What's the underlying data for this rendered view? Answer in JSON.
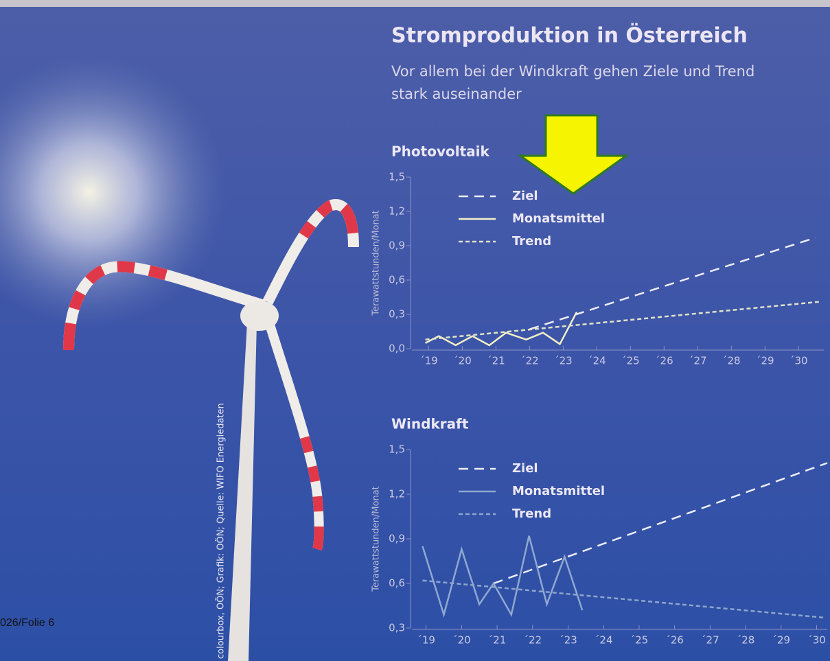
{
  "header": {
    "title": "Stromproduktion in Österreich",
    "subtitle": [
      "Vor allem bei der Windkraft gehen Ziele und Trend",
      "stark auseinander"
    ]
  },
  "credit": "colourbox, OÖN; Grafik: OÖN; Quelle: WIFO Energiedaten",
  "slide_label": "026/Folie 6",
  "chart_data": [
    {
      "type": "line",
      "title": "Photovoltaik",
      "ylabel": "Terawattstunden/Monat",
      "legend": "upper left",
      "xlim": [
        18.5,
        30.75
      ],
      "xticks": [
        {
          "value": 19,
          "label": "´19"
        },
        {
          "value": 20,
          "label": "´20"
        },
        {
          "value": 21,
          "label": "´21"
        },
        {
          "value": 22,
          "label": "´22"
        },
        {
          "value": 23,
          "label": "´23"
        },
        {
          "value": 24,
          "label": "´24"
        },
        {
          "value": 25,
          "label": "´25"
        },
        {
          "value": 26,
          "label": "´26"
        },
        {
          "value": 27,
          "label": "´27"
        },
        {
          "value": 28,
          "label": "´28"
        },
        {
          "value": 29,
          "label": "´29"
        },
        {
          "value": 30,
          "label": "´30"
        }
      ],
      "ylim": [
        0,
        1.5
      ],
      "yticks": [
        {
          "value": 0,
          "label": "0,0"
        },
        {
          "value": 0.3,
          "label": "0,3"
        },
        {
          "value": 0.6,
          "label": "0,6"
        },
        {
          "value": 0.9,
          "label": "0,9"
        },
        {
          "value": 1.2,
          "label": "1,2"
        },
        {
          "value": 1.5,
          "label": "1,5"
        }
      ],
      "series": [
        {
          "name": "Ziel",
          "color": "#eeeef6",
          "dash": "long",
          "x": [
            22,
            30.5
          ],
          "values": [
            0.17,
            0.97
          ]
        },
        {
          "name": "Monatsmittel",
          "color": "#f2efc6",
          "dash": "solid",
          "x": [
            18.9,
            19.3,
            19.8,
            20.3,
            20.8,
            21.3,
            21.9,
            22.4,
            22.9,
            23.4
          ],
          "values": [
            0.05,
            0.11,
            0.03,
            0.11,
            0.03,
            0.14,
            0.08,
            0.14,
            0.04,
            0.32
          ]
        },
        {
          "name": "Trend",
          "color": "#e2e4c8",
          "dash": "short",
          "x": [
            18.9,
            30.6
          ],
          "values": [
            0.08,
            0.41
          ]
        }
      ]
    },
    {
      "type": "line",
      "title": "Windkraft",
      "ylabel": "Terawattstunden/Monat",
      "legend": "upper left",
      "xlim": [
        18.6,
        30.3
      ],
      "xticks": [
        {
          "value": 19,
          "label": "´19"
        },
        {
          "value": 20,
          "label": "´20"
        },
        {
          "value": 21,
          "label": "´21"
        },
        {
          "value": 22,
          "label": "´22"
        },
        {
          "value": 23,
          "label": "´23"
        },
        {
          "value": 24,
          "label": "´24"
        },
        {
          "value": 25,
          "label": "´25"
        },
        {
          "value": 26,
          "label": "´26"
        },
        {
          "value": 27,
          "label": "´27"
        },
        {
          "value": 28,
          "label": "´28"
        },
        {
          "value": 29,
          "label": "´29"
        },
        {
          "value": 30,
          "label": "´30"
        }
      ],
      "ylim": [
        0.3,
        1.5
      ],
      "yticks": [
        {
          "value": 0.3,
          "label": "0,3"
        },
        {
          "value": 0.6,
          "label": "0,6"
        },
        {
          "value": 0.9,
          "label": "0,9"
        },
        {
          "value": 1.2,
          "label": "1,2"
        },
        {
          "value": 1.5,
          "label": "1,5"
        }
      ],
      "series": [
        {
          "name": "Ziel",
          "color": "#eeeef6",
          "dash": "long",
          "x": [
            20.9,
            30.3
          ],
          "values": [
            0.6,
            1.41
          ]
        },
        {
          "name": "Monatsmittel",
          "color": "#8fa8d0",
          "dash": "solid",
          "x": [
            18.9,
            19.5,
            20.0,
            20.5,
            20.9,
            21.4,
            21.9,
            22.4,
            22.9,
            23.4
          ],
          "values": [
            0.85,
            0.39,
            0.83,
            0.46,
            0.6,
            0.39,
            0.92,
            0.46,
            0.78,
            0.42
          ]
        },
        {
          "name": "Trend",
          "color": "#8ea6cc",
          "dash": "short",
          "x": [
            18.9,
            30.2
          ],
          "values": [
            0.62,
            0.37
          ]
        }
      ]
    }
  ]
}
